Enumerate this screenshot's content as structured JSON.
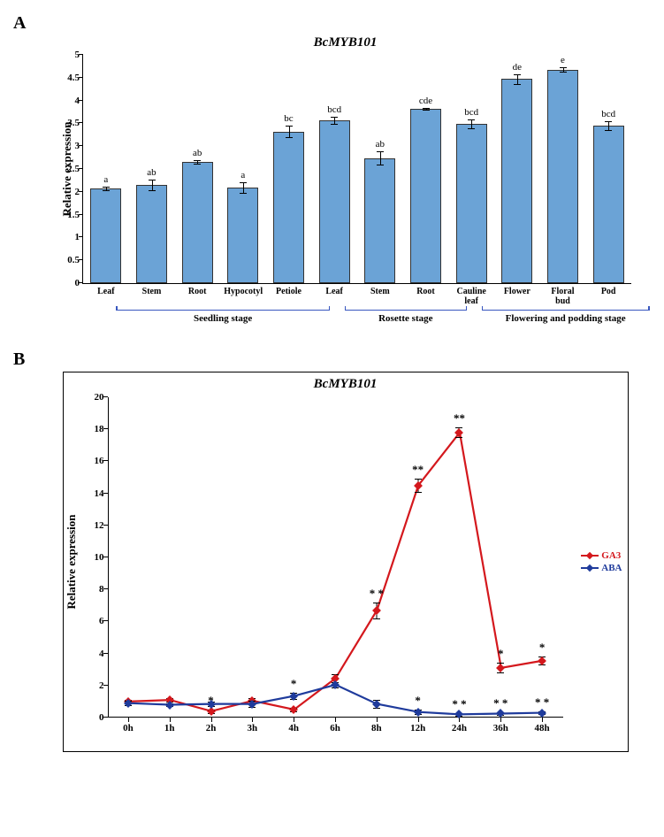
{
  "panelA": {
    "title": "BcMYB101",
    "ylabel": "Relative expression",
    "ylim": [
      0,
      5
    ],
    "ytick_step": 0.5,
    "bar_color": "#6ba3d6",
    "categories": [
      {
        "label": "Leaf",
        "value": 2.08,
        "err": 0.04,
        "sig": "a"
      },
      {
        "label": "Stem",
        "value": 2.15,
        "err": 0.12,
        "sig": "ab"
      },
      {
        "label": "Root",
        "value": 2.66,
        "err": 0.04,
        "sig": "ab"
      },
      {
        "label": "Hypocotyl",
        "value": 2.09,
        "err": 0.12,
        "sig": "a"
      },
      {
        "label": "Petiole",
        "value": 3.32,
        "err": 0.12,
        "sig": "bc"
      },
      {
        "label": "Leaf",
        "value": 3.56,
        "err": 0.08,
        "sig": "bcd"
      },
      {
        "label": "Stem",
        "value": 2.74,
        "err": 0.14,
        "sig": "ab"
      },
      {
        "label": "Root",
        "value": 3.82,
        "err": 0.02,
        "sig": "cde"
      },
      {
        "label": "Cauline leaf",
        "value": 3.49,
        "err": 0.1,
        "sig": "bcd"
      },
      {
        "label": "Flower",
        "value": 4.47,
        "err": 0.11,
        "sig": "de"
      },
      {
        "label": "Floral bud",
        "value": 4.68,
        "err": 0.04,
        "sig": "e"
      },
      {
        "label": "Pod",
        "value": 3.45,
        "err": 0.1,
        "sig": "bcd"
      }
    ],
    "stages": [
      {
        "label": "Seedling stage",
        "from": 0,
        "to": 4
      },
      {
        "label": "Rosette stage",
        "from": 5,
        "to": 7
      },
      {
        "label": "Flowering and podding stage",
        "from": 8,
        "to": 11
      }
    ]
  },
  "panelB": {
    "title": "BcMYB101",
    "ylabel": "Relative expression",
    "ylim": [
      0,
      20
    ],
    "ytick_step": 2,
    "x_categories": [
      "0h",
      "1h",
      "2h",
      "3h",
      "4h",
      "6h",
      "8h",
      "12h",
      "24h",
      "36h",
      "48h"
    ],
    "series": [
      {
        "name": "GA3",
        "color": "#d4181d",
        "values": [
          1.0,
          1.1,
          0.4,
          1.05,
          0.5,
          2.45,
          6.7,
          14.5,
          17.8,
          3.1,
          3.55
        ],
        "err": [
          0.12,
          0.1,
          0.1,
          0.15,
          0.1,
          0.25,
          0.5,
          0.4,
          0.3,
          0.3,
          0.25
        ],
        "sig": [
          "",
          "",
          "*",
          "",
          "*",
          "",
          "* *",
          "**",
          "**",
          "*",
          "*"
        ]
      },
      {
        "name": "ABA",
        "color": "#1f3b9c",
        "values": [
          0.9,
          0.8,
          0.85,
          0.85,
          1.35,
          2.05,
          0.85,
          0.35,
          0.2,
          0.25,
          0.3
        ],
        "err": [
          0.15,
          0.1,
          0.15,
          0.18,
          0.2,
          0.15,
          0.25,
          0.15,
          0.08,
          0.08,
          0.08
        ],
        "sig": [
          "",
          "",
          "",
          "",
          "*",
          "",
          "",
          "*",
          "* *",
          "* *",
          "* *"
        ]
      }
    ]
  }
}
